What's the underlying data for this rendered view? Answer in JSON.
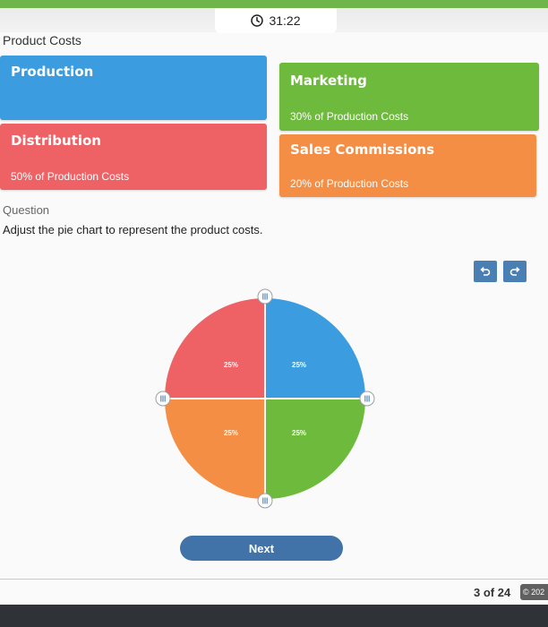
{
  "header": {
    "timer": "31:22",
    "accent": "#6fb64a"
  },
  "section_title": "Product Costs",
  "cards": {
    "production": {
      "title": "Production",
      "color": "#3b9de0"
    },
    "marketing": {
      "title": "Marketing",
      "subtitle": "30% of Production Costs",
      "color": "#6dba3c"
    },
    "distribution": {
      "title": "Distribution",
      "subtitle": "50% of Production Costs",
      "color": "#ee6266"
    },
    "sales": {
      "title": "Sales Commissions",
      "subtitle": "20% of Production Costs",
      "color": "#f58e45"
    }
  },
  "question": {
    "label": "Question",
    "text": "Adjust the pie chart to represent the product costs."
  },
  "tools": {
    "undo_icon": "undo-icon",
    "redo_icon": "redo-icon"
  },
  "chart_data": {
    "type": "pie",
    "slices": [
      {
        "category": "Production",
        "value": 25,
        "label": "25%",
        "color": "#3b9de0"
      },
      {
        "category": "Marketing",
        "value": 25,
        "label": "25%",
        "color": "#6dba3c"
      },
      {
        "category": "Sales Commissions",
        "value": 25,
        "label": "25%",
        "color": "#f58e45"
      },
      {
        "category": "Distribution",
        "value": 25,
        "label": "25%",
        "color": "#ee6266"
      }
    ],
    "handles": 4,
    "handle_icon": "drag-grip-icon"
  },
  "next_label": "Next",
  "footer": {
    "page_counter": "3 of 24",
    "copyright": "© 202"
  }
}
